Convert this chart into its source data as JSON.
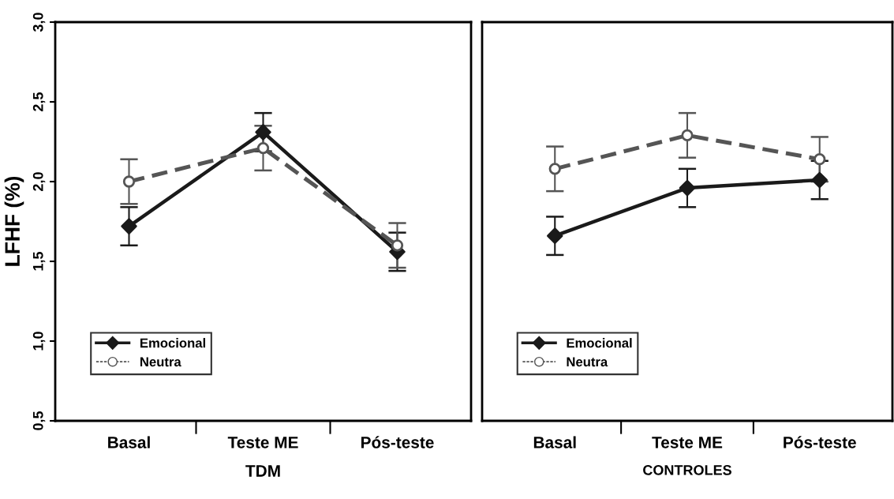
{
  "chart_data": [
    {
      "type": "line",
      "xlabel": "TDM",
      "ylabel": "LFHF (%)",
      "categories": [
        "Basal",
        "Teste ME",
        "Pós-teste"
      ],
      "ylim": [
        0.5,
        3.0
      ],
      "yticks": [
        {
          "value": 0.5,
          "label": "0,5"
        },
        {
          "value": 1.0,
          "label": "1,0"
        },
        {
          "value": 1.5,
          "label": "1,5"
        },
        {
          "value": 2.0,
          "label": "2,0"
        },
        {
          "value": 2.5,
          "label": "2,5"
        },
        {
          "value": 3.0,
          "label": "3,0"
        }
      ],
      "grid": false,
      "legend": "bottom left",
      "series": [
        {
          "name": "Emocional",
          "color": "#1a1a1a",
          "marker": "diamond",
          "line_style": "solid",
          "values": [
            1.72,
            2.31,
            1.56
          ],
          "errors": [
            0.12,
            0.12,
            0.12
          ]
        },
        {
          "name": "Neutra",
          "color": "#555555",
          "marker": "circle",
          "line_style": "dashed",
          "values": [
            2.0,
            2.21,
            1.6
          ],
          "errors": [
            0.14,
            0.14,
            0.14
          ]
        }
      ]
    },
    {
      "type": "line",
      "xlabel": "CONTROLES",
      "categories": [
        "Basal",
        "Teste ME",
        "Pós-teste"
      ],
      "ylim": [
        0.5,
        3.0
      ],
      "tick_labels": "x",
      "grid": false,
      "legend": "bottom left",
      "series": [
        {
          "name": "Emocional",
          "color": "#1a1a1a",
          "marker": "diamond",
          "line_style": "solid",
          "values": [
            1.66,
            1.96,
            2.01
          ],
          "errors": [
            0.12,
            0.12,
            0.12
          ]
        },
        {
          "name": "Neutra",
          "color": "#555555",
          "marker": "circle",
          "line_style": "dashed",
          "values": [
            2.08,
            2.29,
            2.14
          ],
          "errors": [
            0.14,
            0.14,
            0.14
          ]
        }
      ]
    }
  ]
}
